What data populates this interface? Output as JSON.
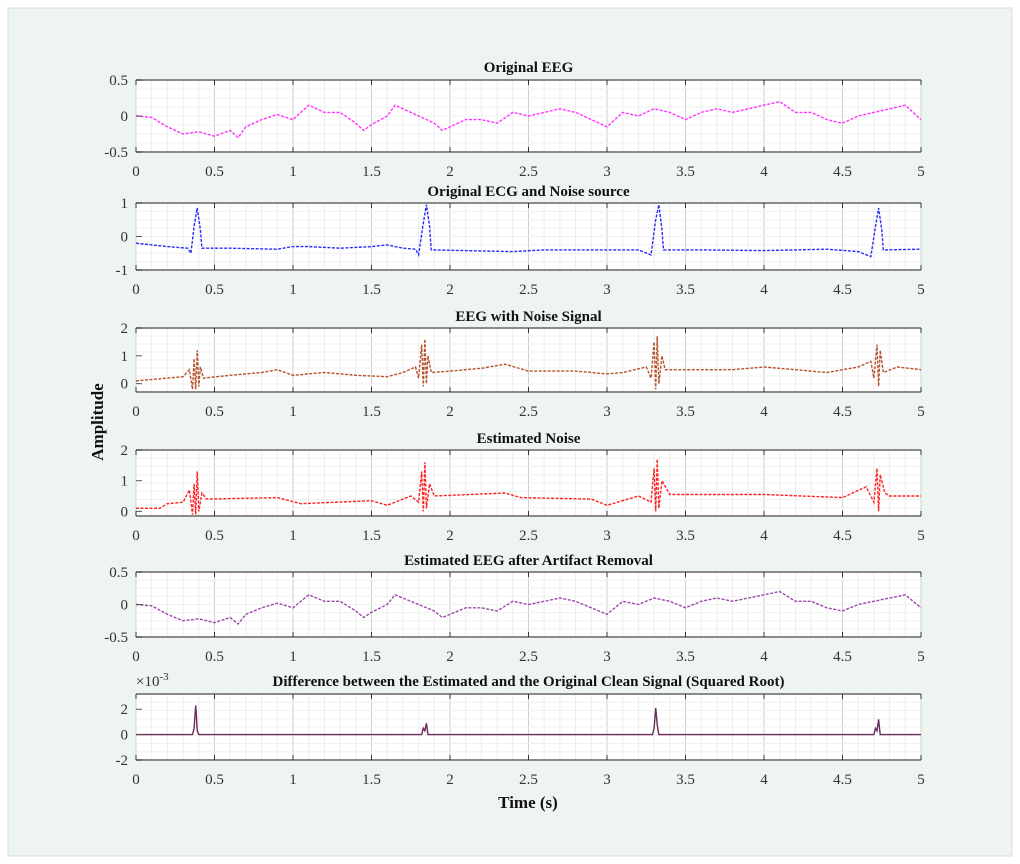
{
  "figure": {
    "background": "#eef4ef",
    "ylabel": "Amplitude",
    "xlabel": "Time (s)"
  },
  "chart_data": [
    {
      "type": "line",
      "title": "Original EEG",
      "xlim": [
        0,
        5
      ],
      "ylim": [
        -0.5,
        0.5
      ],
      "yticks": [
        "-0.5",
        "0",
        "0.5"
      ],
      "xticks": [
        "0",
        "0.5",
        "1",
        "1.5",
        "2",
        "2.5",
        "3",
        "3.5",
        "4",
        "4.5",
        "5"
      ],
      "grid": true,
      "color": "#ff33ff",
      "points": [
        [
          0,
          0
        ],
        [
          0.1,
          -0.02
        ],
        [
          0.2,
          -0.15
        ],
        [
          0.3,
          -0.25
        ],
        [
          0.4,
          -0.22
        ],
        [
          0.5,
          -0.28
        ],
        [
          0.6,
          -0.2
        ],
        [
          0.65,
          -0.3
        ],
        [
          0.7,
          -0.15
        ],
        [
          0.8,
          -0.05
        ],
        [
          0.9,
          0.02
        ],
        [
          1.0,
          -0.05
        ],
        [
          1.1,
          0.15
        ],
        [
          1.2,
          0.05
        ],
        [
          1.3,
          0.05
        ],
        [
          1.4,
          -0.1
        ],
        [
          1.45,
          -0.2
        ],
        [
          1.5,
          -0.12
        ],
        [
          1.6,
          0.0
        ],
        [
          1.65,
          0.15
        ],
        [
          1.7,
          0.1
        ],
        [
          1.8,
          0.0
        ],
        [
          1.9,
          -0.1
        ],
        [
          1.95,
          -0.2
        ],
        [
          2.0,
          -0.15
        ],
        [
          2.1,
          -0.05
        ],
        [
          2.2,
          -0.05
        ],
        [
          2.3,
          -0.1
        ],
        [
          2.4,
          0.05
        ],
        [
          2.5,
          0.0
        ],
        [
          2.6,
          0.05
        ],
        [
          2.7,
          0.1
        ],
        [
          2.8,
          0.05
        ],
        [
          2.9,
          -0.05
        ],
        [
          3.0,
          -0.15
        ],
        [
          3.1,
          0.05
        ],
        [
          3.2,
          0.0
        ],
        [
          3.3,
          0.1
        ],
        [
          3.4,
          0.05
        ],
        [
          3.5,
          -0.05
        ],
        [
          3.6,
          0.05
        ],
        [
          3.7,
          0.1
        ],
        [
          3.8,
          0.05
        ],
        [
          3.9,
          0.1
        ],
        [
          4.0,
          0.15
        ],
        [
          4.1,
          0.2
        ],
        [
          4.2,
          0.05
        ],
        [
          4.3,
          0.05
        ],
        [
          4.4,
          -0.05
        ],
        [
          4.5,
          -0.1
        ],
        [
          4.6,
          0.0
        ],
        [
          4.7,
          0.05
        ],
        [
          4.8,
          0.1
        ],
        [
          4.9,
          0.15
        ],
        [
          5.0,
          -0.05
        ]
      ]
    },
    {
      "type": "line",
      "title": "Original ECG and Noise source",
      "xlim": [
        0,
        5
      ],
      "ylim": [
        -1,
        1
      ],
      "yticks": [
        "-1",
        "0",
        "1"
      ],
      "xticks": [
        "0",
        "0.5",
        "1",
        "1.5",
        "2",
        "2.5",
        "3",
        "3.5",
        "4",
        "4.5",
        "5"
      ],
      "grid": true,
      "color": "#2a2aff",
      "points": [
        [
          0,
          -0.2
        ],
        [
          0.2,
          -0.3
        ],
        [
          0.33,
          -0.35
        ],
        [
          0.35,
          -0.5
        ],
        [
          0.37,
          0.3
        ],
        [
          0.39,
          0.85
        ],
        [
          0.41,
          0.2
        ],
        [
          0.42,
          -0.35
        ],
        [
          0.6,
          -0.35
        ],
        [
          0.9,
          -0.38
        ],
        [
          1.0,
          -0.3
        ],
        [
          1.1,
          -0.3
        ],
        [
          1.3,
          -0.35
        ],
        [
          1.5,
          -0.3
        ],
        [
          1.6,
          -0.25
        ],
        [
          1.7,
          -0.35
        ],
        [
          1.78,
          -0.38
        ],
        [
          1.8,
          -0.55
        ],
        [
          1.83,
          0.4
        ],
        [
          1.85,
          0.95
        ],
        [
          1.87,
          0.3
        ],
        [
          1.88,
          -0.4
        ],
        [
          2.1,
          -0.42
        ],
        [
          2.4,
          -0.45
        ],
        [
          2.6,
          -0.4
        ],
        [
          2.9,
          -0.4
        ],
        [
          3.2,
          -0.4
        ],
        [
          3.28,
          -0.55
        ],
        [
          3.31,
          0.5
        ],
        [
          3.33,
          0.95
        ],
        [
          3.35,
          0.2
        ],
        [
          3.36,
          -0.4
        ],
        [
          3.6,
          -0.4
        ],
        [
          4.0,
          -0.42
        ],
        [
          4.4,
          -0.38
        ],
        [
          4.6,
          -0.45
        ],
        [
          4.68,
          -0.6
        ],
        [
          4.71,
          0.3
        ],
        [
          4.73,
          0.85
        ],
        [
          4.75,
          0.2
        ],
        [
          4.76,
          -0.4
        ],
        [
          5,
          -0.38
        ]
      ]
    },
    {
      "type": "line",
      "title": "EEG with Noise Signal",
      "xlim": [
        0,
        5
      ],
      "ylim": [
        -0.3,
        2
      ],
      "yticks": [
        "0",
        "1",
        "2"
      ],
      "xticks": [
        "0",
        "0.5",
        "1",
        "1.5",
        "2",
        "2.5",
        "3",
        "3.5",
        "4",
        "4.5",
        "5"
      ],
      "grid": true,
      "color": "#b5522a",
      "points": [
        [
          0,
          0.1
        ],
        [
          0.2,
          0.2
        ],
        [
          0.3,
          0.25
        ],
        [
          0.34,
          0.5
        ],
        [
          0.36,
          -0.2
        ],
        [
          0.37,
          0.9
        ],
        [
          0.38,
          -0.2
        ],
        [
          0.39,
          1.2
        ],
        [
          0.4,
          -0.1
        ],
        [
          0.41,
          0.6
        ],
        [
          0.43,
          0.2
        ],
        [
          0.6,
          0.3
        ],
        [
          0.8,
          0.4
        ],
        [
          0.9,
          0.5
        ],
        [
          1.0,
          0.3
        ],
        [
          1.2,
          0.4
        ],
        [
          1.4,
          0.3
        ],
        [
          1.6,
          0.25
        ],
        [
          1.7,
          0.4
        ],
        [
          1.78,
          0.6
        ],
        [
          1.8,
          0.2
        ],
        [
          1.82,
          1.4
        ],
        [
          1.83,
          -0.1
        ],
        [
          1.84,
          1.6
        ],
        [
          1.85,
          0.0
        ],
        [
          1.86,
          1.0
        ],
        [
          1.88,
          0.4
        ],
        [
          2.0,
          0.45
        ],
        [
          2.2,
          0.55
        ],
        [
          2.35,
          0.7
        ],
        [
          2.5,
          0.45
        ],
        [
          2.8,
          0.45
        ],
        [
          3.0,
          0.35
        ],
        [
          3.1,
          0.4
        ],
        [
          3.25,
          0.6
        ],
        [
          3.28,
          0.2
        ],
        [
          3.3,
          1.5
        ],
        [
          3.31,
          -0.2
        ],
        [
          3.32,
          1.7
        ],
        [
          3.33,
          0.0
        ],
        [
          3.35,
          1.0
        ],
        [
          3.37,
          0.5
        ],
        [
          3.6,
          0.5
        ],
        [
          3.8,
          0.5
        ],
        [
          4.0,
          0.6
        ],
        [
          4.2,
          0.5
        ],
        [
          4.4,
          0.4
        ],
        [
          4.6,
          0.6
        ],
        [
          4.68,
          0.8
        ],
        [
          4.7,
          0.2
        ],
        [
          4.72,
          1.4
        ],
        [
          4.73,
          -0.1
        ],
        [
          4.74,
          1.2
        ],
        [
          4.76,
          0.4
        ],
        [
          4.85,
          0.6
        ],
        [
          5,
          0.5
        ]
      ]
    },
    {
      "type": "line",
      "title": "Estimated Noise",
      "xlim": [
        0,
        5
      ],
      "ylim": [
        -0.15,
        2
      ],
      "yticks": [
        "0",
        "1",
        "2"
      ],
      "xticks": [
        "0",
        "0.5",
        "1",
        "1.5",
        "2",
        "2.5",
        "3",
        "3.5",
        "4",
        "4.5",
        "5"
      ],
      "grid": true,
      "color": "#ff2020",
      "points": [
        [
          0,
          0.1
        ],
        [
          0.15,
          0.1
        ],
        [
          0.2,
          0.25
        ],
        [
          0.3,
          0.3
        ],
        [
          0.34,
          0.7
        ],
        [
          0.36,
          -0.1
        ],
        [
          0.37,
          0.9
        ],
        [
          0.38,
          -0.1
        ],
        [
          0.39,
          1.3
        ],
        [
          0.4,
          0.0
        ],
        [
          0.42,
          0.6
        ],
        [
          0.45,
          0.4
        ],
        [
          0.9,
          0.45
        ],
        [
          1.05,
          0.25
        ],
        [
          1.5,
          0.35
        ],
        [
          1.6,
          0.2
        ],
        [
          1.75,
          0.5
        ],
        [
          1.8,
          0.3
        ],
        [
          1.82,
          1.3
        ],
        [
          1.83,
          0.0
        ],
        [
          1.84,
          1.6
        ],
        [
          1.85,
          0.1
        ],
        [
          1.87,
          0.9
        ],
        [
          1.9,
          0.5
        ],
        [
          2.35,
          0.6
        ],
        [
          2.45,
          0.45
        ],
        [
          2.9,
          0.4
        ],
        [
          3.0,
          0.2
        ],
        [
          3.2,
          0.5
        ],
        [
          3.28,
          0.3
        ],
        [
          3.3,
          1.4
        ],
        [
          3.31,
          0.0
        ],
        [
          3.32,
          1.7
        ],
        [
          3.33,
          0.1
        ],
        [
          3.35,
          1.0
        ],
        [
          3.4,
          0.55
        ],
        [
          4.0,
          0.55
        ],
        [
          4.5,
          0.45
        ],
        [
          4.65,
          0.8
        ],
        [
          4.7,
          0.3
        ],
        [
          4.72,
          1.4
        ],
        [
          4.73,
          0.0
        ],
        [
          4.74,
          1.2
        ],
        [
          4.77,
          0.6
        ],
        [
          4.8,
          0.5
        ],
        [
          5,
          0.5
        ]
      ]
    },
    {
      "type": "line",
      "title": "Estimated EEG after Artifact Removal",
      "xlim": [
        0,
        5
      ],
      "ylim": [
        -0.5,
        0.5
      ],
      "yticks": [
        "-0.5",
        "0",
        "0.5"
      ],
      "xticks": [
        "0",
        "0.5",
        "1",
        "1.5",
        "2",
        "2.5",
        "3",
        "3.5",
        "4",
        "4.5",
        "5"
      ],
      "grid": true,
      "color": "#9a4aa8",
      "points": [
        [
          0,
          0
        ],
        [
          0.1,
          -0.02
        ],
        [
          0.2,
          -0.15
        ],
        [
          0.3,
          -0.25
        ],
        [
          0.4,
          -0.22
        ],
        [
          0.5,
          -0.28
        ],
        [
          0.6,
          -0.2
        ],
        [
          0.65,
          -0.3
        ],
        [
          0.7,
          -0.15
        ],
        [
          0.8,
          -0.05
        ],
        [
          0.9,
          0.02
        ],
        [
          1.0,
          -0.05
        ],
        [
          1.1,
          0.15
        ],
        [
          1.2,
          0.05
        ],
        [
          1.3,
          0.05
        ],
        [
          1.4,
          -0.1
        ],
        [
          1.45,
          -0.2
        ],
        [
          1.5,
          -0.12
        ],
        [
          1.6,
          0.0
        ],
        [
          1.65,
          0.15
        ],
        [
          1.7,
          0.1
        ],
        [
          1.8,
          0.0
        ],
        [
          1.9,
          -0.1
        ],
        [
          1.95,
          -0.2
        ],
        [
          2.0,
          -0.15
        ],
        [
          2.1,
          -0.05
        ],
        [
          2.2,
          -0.05
        ],
        [
          2.3,
          -0.1
        ],
        [
          2.4,
          0.05
        ],
        [
          2.5,
          0.0
        ],
        [
          2.6,
          0.05
        ],
        [
          2.7,
          0.1
        ],
        [
          2.8,
          0.05
        ],
        [
          2.9,
          -0.05
        ],
        [
          3.0,
          -0.15
        ],
        [
          3.1,
          0.05
        ],
        [
          3.2,
          0.0
        ],
        [
          3.3,
          0.1
        ],
        [
          3.4,
          0.05
        ],
        [
          3.5,
          -0.05
        ],
        [
          3.6,
          0.05
        ],
        [
          3.7,
          0.1
        ],
        [
          3.8,
          0.05
        ],
        [
          3.9,
          0.1
        ],
        [
          4.0,
          0.15
        ],
        [
          4.1,
          0.2
        ],
        [
          4.2,
          0.05
        ],
        [
          4.3,
          0.05
        ],
        [
          4.4,
          -0.05
        ],
        [
          4.5,
          -0.1
        ],
        [
          4.6,
          0.0
        ],
        [
          4.7,
          0.05
        ],
        [
          4.8,
          0.1
        ],
        [
          4.9,
          0.15
        ],
        [
          5.0,
          -0.05
        ]
      ]
    },
    {
      "type": "line",
      "title": "Difference between the Estimated and the Original Clean Signal (Squared Root)",
      "y_exponent": "-3",
      "y_exponent_base": "×10",
      "xlim": [
        0,
        5
      ],
      "ylim": [
        -2,
        3.2
      ],
      "yticks": [
        "-2",
        "0",
        "2"
      ],
      "xticks": [
        "0",
        "0.5",
        "1",
        "1.5",
        "2",
        "2.5",
        "3",
        "3.5",
        "4",
        "4.5",
        "5"
      ],
      "grid": true,
      "color": "#6a2a5a",
      "points": [
        [
          0,
          0
        ],
        [
          0.36,
          0
        ],
        [
          0.37,
          0.5
        ],
        [
          0.38,
          2.3
        ],
        [
          0.385,
          1.5
        ],
        [
          0.39,
          0.3
        ],
        [
          0.4,
          0
        ],
        [
          1.82,
          0
        ],
        [
          1.83,
          0.5
        ],
        [
          1.84,
          0.3
        ],
        [
          1.85,
          0.9
        ],
        [
          1.86,
          0
        ],
        [
          3.29,
          0
        ],
        [
          3.3,
          0.5
        ],
        [
          3.31,
          2.1
        ],
        [
          3.32,
          0.8
        ],
        [
          3.33,
          0
        ],
        [
          4.7,
          0
        ],
        [
          4.71,
          0.5
        ],
        [
          4.72,
          0.3
        ],
        [
          4.73,
          1.2
        ],
        [
          4.74,
          0
        ],
        [
          5,
          0
        ]
      ]
    }
  ]
}
